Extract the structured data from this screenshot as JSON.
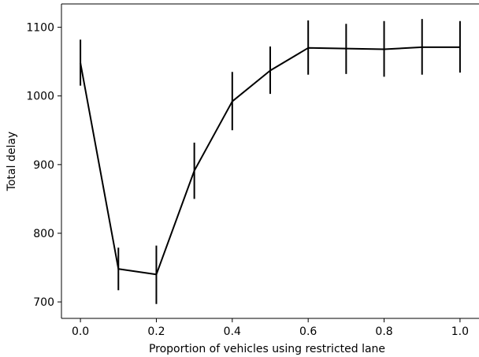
{
  "chart_data": {
    "type": "line",
    "title": "",
    "xlabel": "Proportion of vehicles using restricted lane",
    "ylabel": "Total delay",
    "x": [
      0.0,
      0.1,
      0.2,
      0.3,
      0.4,
      0.5,
      0.6,
      0.7,
      0.8,
      0.9,
      1.0
    ],
    "series": [
      {
        "values": [
          1048,
          748,
          740,
          891,
          992,
          1037,
          1070,
          1069,
          1068,
          1071,
          1071
        ],
        "err_low": [
          1015,
          717,
          697,
          850,
          950,
          1003,
          1031,
          1032,
          1028,
          1031,
          1034
        ],
        "err_high": [
          1082,
          779,
          782,
          932,
          1035,
          1072,
          1110,
          1105,
          1109,
          1112,
          1109
        ],
        "color": "#000000"
      }
    ],
    "xlim": [
      -0.05,
      1.05
    ],
    "ylim": [
      676,
      1134
    ],
    "xticks": [
      0.0,
      0.2,
      0.4,
      0.6,
      0.8,
      1.0
    ],
    "xtick_labels": [
      "0.0",
      "0.2",
      "0.4",
      "0.6",
      "0.8",
      "1.0"
    ],
    "yticks": [
      700,
      800,
      900,
      1000,
      1100
    ],
    "ytick_labels": [
      "700",
      "800",
      "900",
      "1000",
      "1100"
    ],
    "grid": false,
    "legend": "none"
  }
}
